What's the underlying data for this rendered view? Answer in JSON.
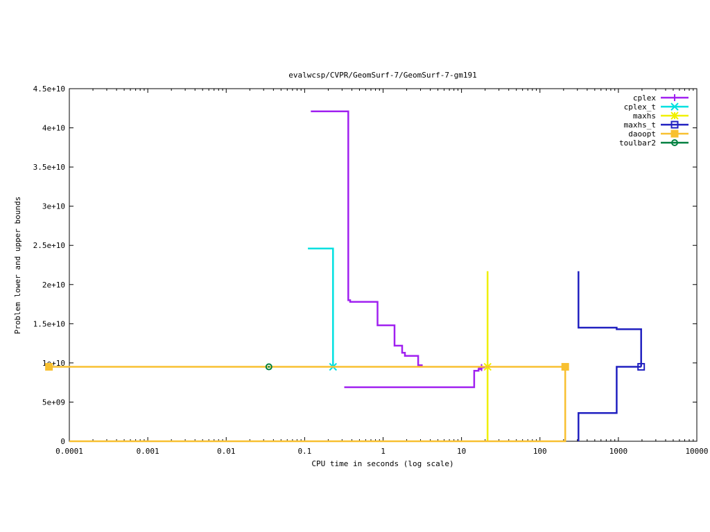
{
  "chart_data": {
    "type": "line",
    "title": "evalwcsp/CVPR/GeomSurf-7/GeomSurf-7-gm191",
    "xlabel": "CPU time in seconds (log scale)",
    "ylabel": "Problem lower and upper bounds",
    "xscale": "log",
    "xlim": [
      0.0001,
      10000
    ],
    "ylim": [
      0,
      45000000000
    ],
    "xticks": [
      0.0001,
      0.001,
      0.01,
      0.1,
      1,
      10,
      100,
      1000,
      10000
    ],
    "xtick_labels": [
      "0.0001",
      "0.001",
      "0.01",
      "0.1",
      "1",
      "10",
      "100",
      "1000",
      "10000"
    ],
    "yticks": [
      0,
      5000000000,
      10000000000,
      15000000000,
      20000000000,
      25000000000,
      30000000000,
      35000000000,
      40000000000,
      45000000000
    ],
    "ytick_labels": [
      "0",
      "5e+09",
      "1e+10",
      "1.5e+10",
      "2e+10",
      "2.5e+10",
      "3e+10",
      "3.5e+10",
      "4e+10",
      "4.5e+10"
    ],
    "grid": false,
    "legend_position": "top-right",
    "series": [
      {
        "name": "cplex",
        "color": "#a020f0",
        "marker": "plus",
        "lines": [
          [
            [
              0.12,
              42100000000
            ],
            [
              0.36,
              42100000000
            ],
            [
              0.36,
              18000000000
            ],
            [
              0.38,
              18000000000
            ],
            [
              0.38,
              17800000000
            ],
            [
              0.85,
              17800000000
            ],
            [
              0.85,
              14800000000
            ],
            [
              1.4,
              14800000000
            ],
            [
              1.4,
              12200000000
            ],
            [
              1.75,
              12200000000
            ],
            [
              1.75,
              11300000000
            ],
            [
              1.9,
              11300000000
            ],
            [
              1.9,
              10900000000
            ],
            [
              2.8,
              10900000000
            ],
            [
              2.8,
              9700000000
            ],
            [
              3.2,
              9700000000
            ]
          ],
          [
            [
              0.32,
              6900000000
            ],
            [
              14.5,
              6900000000
            ],
            [
              14.5,
              9000000000
            ],
            [
              16.5,
              9000000000
            ],
            [
              16.5,
              9200000000
            ],
            [
              18.0,
              9200000000
            ],
            [
              18.0,
              9500000000
            ]
          ]
        ],
        "markers": [
          [
            18.0,
            9400000000
          ]
        ]
      },
      {
        "name": "cplex_t",
        "color": "#00e0e0",
        "marker": "cross",
        "lines": [
          [
            [
              0.11,
              24600000000
            ],
            [
              0.23,
              24600000000
            ],
            [
              0.23,
              9500000000
            ]
          ]
        ],
        "markers": [
          [
            0.23,
            9500000000
          ]
        ]
      },
      {
        "name": "maxhs",
        "color": "#f0f000",
        "marker": "star",
        "lines": [
          [
            [
              21.5,
              21700000000
            ],
            [
              21.5,
              0
            ]
          ]
        ],
        "markers": [
          [
            21.5,
            9500000000
          ]
        ]
      },
      {
        "name": "maxhs_t",
        "color": "#2020c0",
        "marker": "open-square",
        "lines": [
          [
            [
              310,
              21700000000
            ],
            [
              310,
              14500000000
            ],
            [
              950,
              14500000000
            ],
            [
              950,
              14300000000
            ],
            [
              1950,
              14300000000
            ],
            [
              1950,
              9500000000
            ]
          ],
          [
            [
              310,
              0
            ],
            [
              310,
              3600000000
            ],
            [
              950,
              3600000000
            ],
            [
              950,
              9500000000
            ],
            [
              1950,
              9500000000
            ]
          ]
        ],
        "markers": [
          [
            1950,
            9500000000
          ]
        ]
      },
      {
        "name": "daoopt",
        "color": "#f8c030",
        "marker": "filled-square",
        "lines": [
          [
            [
              5.5e-05,
              9500000000
            ],
            [
              210,
              9500000000
            ]
          ],
          [
            [
              0.0001,
              0
            ],
            [
              210,
              0
            ],
            [
              210,
              9500000000
            ]
          ]
        ],
        "markers": [
          [
            5.5e-05,
            9500000000
          ],
          [
            210,
            9500000000
          ]
        ]
      },
      {
        "name": "toulbar2",
        "color": "#008040",
        "marker": "open-circle",
        "lines": [],
        "markers": [
          [
            0.035,
            9500000000
          ]
        ]
      }
    ]
  }
}
